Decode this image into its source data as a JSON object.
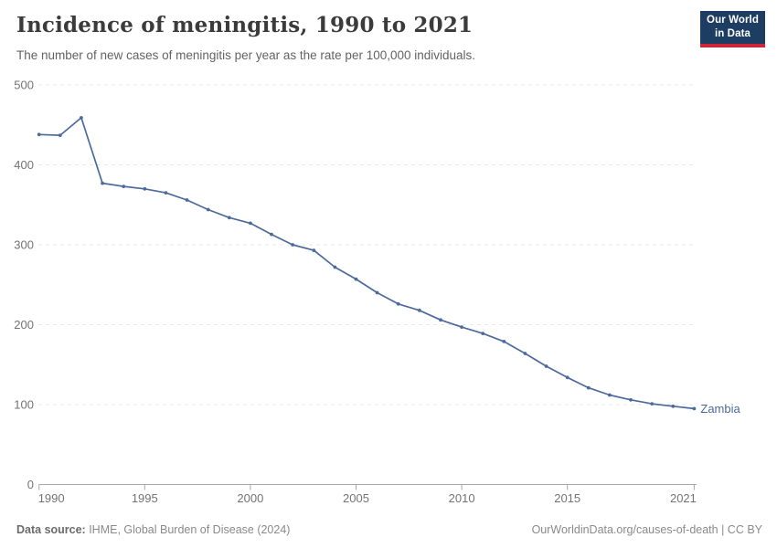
{
  "header": {
    "title": "Incidence of meningitis, 1990 to 2021",
    "subtitle": "The number of new cases of meningitis per year as the rate per 100,000 individuals.",
    "logo": {
      "line1": "Our World",
      "line2": "in Data"
    }
  },
  "chart_data": {
    "type": "line",
    "title": "Incidence of meningitis, 1990 to 2021",
    "subtitle": "The number of new cases of meningitis per year as the rate per 100,000 individuals.",
    "xlabel": "",
    "ylabel": "",
    "xlim": [
      1990,
      2021
    ],
    "ylim": [
      0,
      500
    ],
    "grid": "horizontal-dashed",
    "legend_position": "end-of-line-label",
    "x_ticks": [
      1990,
      1995,
      2000,
      2005,
      2010,
      2015,
      2021
    ],
    "x_tick_labels": [
      "1990",
      "1995",
      "2000",
      "2005",
      "2010",
      "2015",
      "2021"
    ],
    "y_ticks": [
      0,
      100,
      200,
      300,
      400,
      500
    ],
    "y_tick_labels": [
      "0",
      "100",
      "200",
      "300",
      "400",
      "500"
    ],
    "x": [
      1990,
      1991,
      1992,
      1993,
      1994,
      1995,
      1996,
      1997,
      1998,
      1999,
      2000,
      2001,
      2002,
      2003,
      2004,
      2005,
      2006,
      2007,
      2008,
      2009,
      2010,
      2011,
      2012,
      2013,
      2014,
      2015,
      2016,
      2017,
      2018,
      2019,
      2020,
      2021
    ],
    "series": [
      {
        "name": "Zambia",
        "color": "#4c6a9c",
        "values": [
          438,
          437,
          459,
          377,
          373,
          370,
          365,
          356,
          344,
          334,
          327,
          313,
          300,
          293,
          272,
          257,
          240,
          226,
          218,
          206,
          197,
          189,
          179,
          164,
          148,
          134,
          121,
          112,
          106,
          101,
          98,
          95
        ]
      }
    ]
  },
  "footer": {
    "source_label": "Data source:",
    "source_text": " IHME, Global Burden of Disease (2024)",
    "credit": "OurWorldinData.org/causes-of-death | CC BY"
  },
  "colors": {
    "line": "#4c6a9c",
    "end_label": "#4c6a9c",
    "gridline": "#e3e3e3",
    "axis": "#a8a8a8",
    "tick_label": "#737373",
    "logo_bg": "#1d3d63",
    "logo_stripe": "#ce2637",
    "title_text": "#3b3b3b",
    "subtitle_text": "#636363",
    "footer_text": "#8a8a8a"
  }
}
